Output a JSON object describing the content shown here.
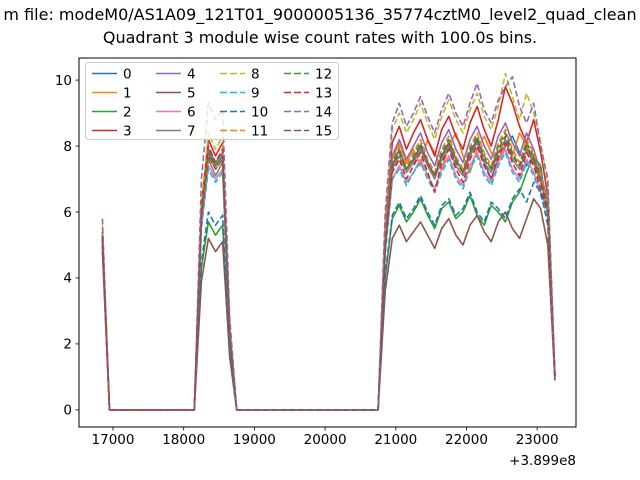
{
  "figure": {
    "suptitle": "m file: modeM0/AS1A09_121T01_9000005136_35774cztM0_level2_quad_clean",
    "axes_title": "Quadrant 3 module wise count rates with 100.0s bins."
  },
  "chart_data": {
    "type": "line",
    "title": "Quadrant 3 module wise count rates with 100.0s bins.",
    "xlabel": "",
    "ylabel": "",
    "x_offset_label": "+3.899e8",
    "xlim": [
      16519,
      23549
    ],
    "ylim": [
      -0.52,
      10.67
    ],
    "xticks": [
      17000,
      18000,
      19000,
      20000,
      21000,
      22000,
      23000
    ],
    "yticks": [
      0,
      2,
      4,
      6,
      8,
      10
    ],
    "grid": false,
    "legend": {
      "position": "upper left",
      "columns": 4,
      "rows": 4
    },
    "x": [
      16850,
      16950,
      17050,
      17150,
      17250,
      17350,
      17450,
      17550,
      17650,
      17750,
      17850,
      17950,
      18050,
      18150,
      18250,
      18350,
      18450,
      18550,
      18650,
      18750,
      18850,
      18950,
      19050,
      19150,
      19250,
      19350,
      19450,
      19550,
      19650,
      19750,
      19850,
      19950,
      20050,
      20150,
      20250,
      20350,
      20450,
      20550,
      20650,
      20750,
      20850,
      20950,
      21050,
      21150,
      21250,
      21350,
      21450,
      21550,
      21650,
      21750,
      21850,
      21950,
      22050,
      22150,
      22250,
      22350,
      22450,
      22550,
      22650,
      22750,
      22850,
      22950,
      23050,
      23150,
      23250
    ],
    "series": [
      {
        "label": "0",
        "color": "#1f77b4",
        "linestyle": "solid",
        "values": [
          5.3,
          0,
          0,
          0,
          0,
          0,
          0,
          0,
          0,
          0,
          0,
          0,
          0,
          0,
          5.9,
          7.8,
          7.4,
          7.7,
          2.3,
          0,
          0,
          0,
          0,
          0,
          0,
          0,
          0,
          0,
          0,
          0,
          0,
          0,
          0,
          0,
          0,
          0,
          0,
          0,
          0,
          0,
          5.0,
          7.4,
          7.9,
          7.3,
          7.6,
          8.0,
          7.5,
          7.1,
          7.7,
          8.1,
          7.6,
          7.2,
          7.8,
          8.2,
          7.5,
          7.0,
          7.6,
          8.0,
          8.3,
          7.8,
          7.4,
          7.7,
          7.1,
          6.0,
          1.0
        ]
      },
      {
        "label": "1",
        "color": "#ff7f0e",
        "linestyle": "solid",
        "values": [
          5.2,
          0,
          0,
          0,
          0,
          0,
          0,
          0,
          0,
          0,
          0,
          0,
          0,
          0,
          5.9,
          7.9,
          7.5,
          7.8,
          2.3,
          0,
          0,
          0,
          0,
          0,
          0,
          0,
          0,
          0,
          0,
          0,
          0,
          0,
          0,
          0,
          0,
          0,
          0,
          0,
          0,
          0,
          5.1,
          7.6,
          8.1,
          7.5,
          7.9,
          7.4,
          8.2,
          7.8,
          7.3,
          8.0,
          8.4,
          7.7,
          7.2,
          7.9,
          8.3,
          7.8,
          7.5,
          8.1,
          7.7,
          8.4,
          8.0,
          7.6,
          7.0,
          6.2,
          1.0
        ]
      },
      {
        "label": "2",
        "color": "#2ca02c",
        "linestyle": "solid",
        "values": [
          5.0,
          0,
          0,
          0,
          0,
          0,
          0,
          0,
          0,
          0,
          0,
          0,
          0,
          0,
          4.3,
          5.7,
          5.3,
          5.6,
          1.7,
          0,
          0,
          0,
          0,
          0,
          0,
          0,
          0,
          0,
          0,
          0,
          0,
          0,
          0,
          0,
          0,
          0,
          0,
          0,
          0,
          0,
          4.0,
          5.8,
          6.2,
          5.7,
          6.0,
          6.4,
          5.9,
          5.5,
          6.1,
          6.3,
          5.8,
          6.0,
          6.5,
          5.9,
          5.6,
          6.2,
          6.0,
          5.7,
          6.3,
          6.6,
          7.2,
          7.7,
          7.4,
          5.8,
          1.0
        ]
      },
      {
        "label": "3",
        "color": "#d62728",
        "linestyle": "solid",
        "values": [
          5.4,
          0,
          0,
          0,
          0,
          0,
          0,
          0,
          0,
          0,
          0,
          0,
          0,
          0,
          6.2,
          8.2,
          7.7,
          8.1,
          2.5,
          0,
          0,
          0,
          0,
          0,
          0,
          0,
          0,
          0,
          0,
          0,
          0,
          0,
          0,
          0,
          0,
          0,
          0,
          0,
          0,
          0,
          5.5,
          8.1,
          8.6,
          7.9,
          8.4,
          8.8,
          8.2,
          7.7,
          8.5,
          8.9,
          8.3,
          7.9,
          8.7,
          9.2,
          8.5,
          8.0,
          8.8,
          9.8,
          9.3,
          8.6,
          8.1,
          8.8,
          7.8,
          6.5,
          1.1
        ]
      },
      {
        "label": "4",
        "color": "#9467bd",
        "linestyle": "solid",
        "values": [
          5.3,
          0,
          0,
          0,
          0,
          0,
          0,
          0,
          0,
          0,
          0,
          0,
          0,
          0,
          5.9,
          7.9,
          7.5,
          7.8,
          2.4,
          0,
          0,
          0,
          0,
          0,
          0,
          0,
          0,
          0,
          0,
          0,
          0,
          0,
          0,
          0,
          0,
          0,
          0,
          0,
          0,
          0,
          5.2,
          7.7,
          8.2,
          7.6,
          8.0,
          8.4,
          7.8,
          7.4,
          8.1,
          8.5,
          7.9,
          7.5,
          8.2,
          8.6,
          8.0,
          7.6,
          8.3,
          8.7,
          8.1,
          7.7,
          8.4,
          7.9,
          7.2,
          6.3,
          1.0
        ]
      },
      {
        "label": "5",
        "color": "#8c564b",
        "linestyle": "solid",
        "values": [
          4.8,
          0,
          0,
          0,
          0,
          0,
          0,
          0,
          0,
          0,
          0,
          0,
          0,
          0,
          3.9,
          5.2,
          4.8,
          5.1,
          1.6,
          0,
          0,
          0,
          0,
          0,
          0,
          0,
          0,
          0,
          0,
          0,
          0,
          0,
          0,
          0,
          0,
          0,
          0,
          0,
          0,
          0,
          3.6,
          5.2,
          5.6,
          5.1,
          5.4,
          5.7,
          5.3,
          4.9,
          5.5,
          5.8,
          5.3,
          5.0,
          5.6,
          5.9,
          5.4,
          5.1,
          5.7,
          6.0,
          5.5,
          5.2,
          5.8,
          6.4,
          6.1,
          5.0,
          0.9
        ]
      },
      {
        "label": "6",
        "color": "#e377c2",
        "linestyle": "solid",
        "values": [
          5.1,
          0,
          0,
          0,
          0,
          0,
          0,
          0,
          0,
          0,
          0,
          0,
          0,
          0,
          5.6,
          7.4,
          7.0,
          7.3,
          2.2,
          0,
          0,
          0,
          0,
          0,
          0,
          0,
          0,
          0,
          0,
          0,
          0,
          0,
          0,
          0,
          0,
          0,
          0,
          0,
          0,
          0,
          4.8,
          7.0,
          7.4,
          6.9,
          7.2,
          7.6,
          7.1,
          6.7,
          7.3,
          7.7,
          7.1,
          6.8,
          7.4,
          7.8,
          7.2,
          6.9,
          7.5,
          7.9,
          7.3,
          7.0,
          7.6,
          7.2,
          6.6,
          6.0,
          1.0
        ]
      },
      {
        "label": "7",
        "color": "#7f7f7f",
        "linestyle": "solid",
        "values": [
          5.2,
          0,
          0,
          0,
          0,
          0,
          0,
          0,
          0,
          0,
          0,
          0,
          0,
          0,
          5.7,
          7.6,
          7.1,
          7.5,
          2.3,
          0,
          0,
          0,
          0,
          0,
          0,
          0,
          0,
          0,
          0,
          0,
          0,
          0,
          0,
          0,
          0,
          0,
          0,
          0,
          0,
          0,
          5.0,
          7.3,
          7.7,
          7.2,
          7.5,
          7.9,
          7.4,
          7.0,
          7.6,
          8.0,
          7.4,
          7.1,
          7.7,
          8.1,
          7.5,
          7.2,
          7.8,
          8.2,
          7.6,
          7.3,
          7.9,
          7.5,
          6.9,
          6.1,
          1.0
        ]
      },
      {
        "label": "8",
        "color": "#bcbd22",
        "linestyle": "dashed",
        "values": [
          5.6,
          0,
          0,
          0,
          0,
          0,
          0,
          0,
          0,
          0,
          0,
          0,
          0,
          0,
          6.3,
          8.4,
          7.9,
          8.3,
          2.5,
          0,
          0,
          0,
          0,
          0,
          0,
          0,
          0,
          0,
          0,
          0,
          0,
          0,
          0,
          0,
          0,
          0,
          0,
          0,
          0,
          0,
          5.8,
          8.5,
          9.0,
          8.4,
          8.8,
          9.3,
          8.7,
          8.2,
          8.9,
          9.4,
          8.8,
          8.4,
          9.1,
          9.6,
          8.9,
          8.5,
          9.2,
          10.2,
          9.5,
          8.8,
          9.6,
          9.0,
          8.1,
          6.8,
          1.1
        ]
      },
      {
        "label": "9",
        "color": "#17becf",
        "linestyle": "dashed",
        "values": [
          5.1,
          0,
          0,
          0,
          0,
          0,
          0,
          0,
          0,
          0,
          0,
          0,
          0,
          0,
          5.5,
          7.3,
          6.9,
          7.2,
          2.2,
          0,
          0,
          0,
          0,
          0,
          0,
          0,
          0,
          0,
          0,
          0,
          0,
          0,
          0,
          0,
          0,
          0,
          0,
          0,
          0,
          0,
          4.7,
          7.0,
          7.3,
          6.8,
          7.2,
          7.5,
          7.0,
          6.6,
          7.2,
          7.6,
          7.0,
          6.7,
          7.3,
          7.7,
          7.1,
          6.8,
          7.4,
          7.8,
          7.2,
          6.9,
          7.5,
          7.1,
          6.5,
          5.9,
          1.0
        ]
      },
      {
        "label": "10",
        "color": "#1f77b4",
        "linestyle": "dashed",
        "values": [
          5.0,
          0,
          0,
          0,
          0,
          0,
          0,
          0,
          0,
          0,
          0,
          0,
          0,
          0,
          4.5,
          6.0,
          5.6,
          5.9,
          1.8,
          0,
          0,
          0,
          0,
          0,
          0,
          0,
          0,
          0,
          0,
          0,
          0,
          0,
          0,
          0,
          0,
          0,
          0,
          0,
          0,
          0,
          4.1,
          5.9,
          6.3,
          5.8,
          6.1,
          6.5,
          6.0,
          5.6,
          6.2,
          6.4,
          5.9,
          6.1,
          6.6,
          6.0,
          5.7,
          6.3,
          6.1,
          5.8,
          6.4,
          6.7,
          6.3,
          6.9,
          6.6,
          5.6,
          0.9
        ]
      },
      {
        "label": "11",
        "color": "#ff7f0e",
        "linestyle": "dashed",
        "values": [
          5.2,
          0,
          0,
          0,
          0,
          0,
          0,
          0,
          0,
          0,
          0,
          0,
          0,
          0,
          5.8,
          7.7,
          7.3,
          7.6,
          2.3,
          0,
          0,
          0,
          0,
          0,
          0,
          0,
          0,
          0,
          0,
          0,
          0,
          0,
          0,
          0,
          0,
          0,
          0,
          0,
          0,
          0,
          5.1,
          7.5,
          8.0,
          7.4,
          7.8,
          8.2,
          7.6,
          7.2,
          7.9,
          8.3,
          7.7,
          7.3,
          8.0,
          8.4,
          7.8,
          7.4,
          8.1,
          8.5,
          7.9,
          7.5,
          8.2,
          7.8,
          7.1,
          6.2,
          1.0
        ]
      },
      {
        "label": "12",
        "color": "#2ca02c",
        "linestyle": "dashed",
        "values": [
          5.3,
          0,
          0,
          0,
          0,
          0,
          0,
          0,
          0,
          0,
          0,
          0,
          0,
          0,
          5.9,
          7.8,
          7.4,
          7.7,
          2.3,
          0,
          0,
          0,
          0,
          0,
          0,
          0,
          0,
          0,
          0,
          0,
          0,
          0,
          0,
          0,
          0,
          0,
          0,
          0,
          0,
          0,
          5.1,
          7.5,
          7.9,
          7.3,
          7.7,
          8.1,
          7.5,
          7.1,
          7.8,
          8.2,
          7.6,
          7.2,
          7.9,
          8.3,
          7.7,
          7.3,
          8.0,
          8.4,
          7.8,
          7.4,
          8.1,
          7.7,
          7.0,
          6.2,
          1.0
        ]
      },
      {
        "label": "13",
        "color": "#d62728",
        "linestyle": "dashed",
        "values": [
          5.2,
          0,
          0,
          0,
          0,
          0,
          0,
          0,
          0,
          0,
          0,
          0,
          0,
          0,
          6.0,
          8.0,
          7.5,
          7.9,
          2.4,
          0,
          0,
          0,
          0,
          0,
          0,
          0,
          0,
          0,
          0,
          0,
          0,
          0,
          0,
          0,
          0,
          0,
          0,
          0,
          0,
          0,
          4.9,
          7.2,
          7.6,
          7.0,
          7.4,
          7.8,
          7.2,
          6.6,
          7.5,
          7.9,
          7.3,
          6.9,
          7.6,
          8.0,
          7.4,
          7.0,
          7.7,
          8.1,
          7.5,
          7.1,
          7.8,
          7.4,
          6.7,
          6.0,
          1.0
        ]
      },
      {
        "label": "14",
        "color": "#9467bd",
        "linestyle": "dashed",
        "values": [
          5.8,
          0,
          0,
          0,
          0,
          0,
          0,
          0,
          0,
          0,
          0,
          0,
          0,
          0,
          7.0,
          9.3,
          8.8,
          9.1,
          2.8,
          0,
          0,
          0,
          0,
          0,
          0,
          0,
          0,
          0,
          0,
          0,
          0,
          0,
          0,
          0,
          0,
          0,
          0,
          0,
          0,
          0,
          6.0,
          8.7,
          9.3,
          8.6,
          9.0,
          9.5,
          8.9,
          8.4,
          9.1,
          9.6,
          9.0,
          8.6,
          9.3,
          9.9,
          9.1,
          8.7,
          9.4,
          9.8,
          10.1,
          9.2,
          8.7,
          9.3,
          8.0,
          7.0,
          1.1
        ]
      },
      {
        "label": "15",
        "color": "#8c564b",
        "linestyle": "dashed",
        "values": [
          5.3,
          0,
          0,
          0,
          0,
          0,
          0,
          0,
          0,
          0,
          0,
          0,
          0,
          0,
          5.8,
          7.7,
          7.3,
          7.6,
          2.3,
          0,
          0,
          0,
          0,
          0,
          0,
          0,
          0,
          0,
          0,
          0,
          0,
          0,
          0,
          0,
          0,
          0,
          0,
          0,
          0,
          0,
          5.0,
          7.4,
          7.8,
          7.3,
          7.6,
          8.0,
          7.5,
          7.1,
          7.7,
          8.1,
          7.5,
          7.2,
          7.8,
          8.2,
          7.6,
          7.3,
          7.9,
          8.3,
          7.7,
          7.4,
          8.0,
          7.6,
          6.9,
          6.1,
          1.0
        ]
      }
    ]
  }
}
